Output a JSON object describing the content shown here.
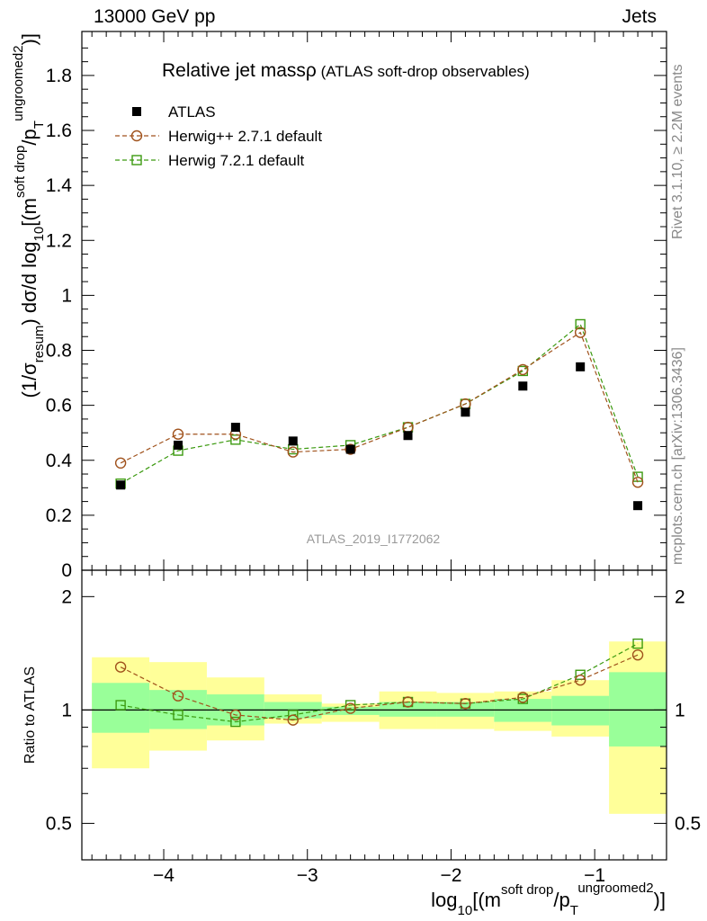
{
  "header": {
    "energy_label": "13000 GeV pp",
    "category_label": "Jets"
  },
  "side_labels": {
    "rivet": "Rivet 3.1.10, ≥ 2.2M events",
    "mcplots": "mcplots.cern.ch [arXiv:1306.3436]"
  },
  "colors": {
    "data": "#000000",
    "herwigpp": "#a0521c",
    "herwig7": "#3c9a10",
    "band_outer": "#ffff99",
    "band_inner": "#99ff99",
    "watermark": "#999999"
  },
  "chart_data": {
    "type": "scatter",
    "title": "Relative jet massρ",
    "subtitle": "(ATLAS soft-drop observables)",
    "analysis_id": "ATLAS_2019_I1772062",
    "xlabel": {
      "pre": "log",
      "sub": "10",
      "mid": "[(m",
      "sup1": "soft drop",
      "mid2": "/p",
      "sub2": "T",
      "sup2": "ungroomed",
      "sup3": "2",
      "post": ")",
      "tail": "]"
    },
    "ylabel": {
      "a": "(1/σ",
      "b": "resum",
      "c": ") dσ/d log",
      "d": "10",
      "e": "[(m",
      "f": "soft drop",
      "g": "/p",
      "h": "T",
      "i": "ungroomed",
      "j": "2",
      "k": ")",
      "l": "]"
    },
    "xlim": [
      -4.57,
      -0.5
    ],
    "ylim_main": [
      0,
      1.96
    ],
    "ylim_ratio": [
      0.4,
      2.35
    ],
    "x_ticks": [
      -4,
      -3,
      -2,
      -1
    ],
    "x_tick_labels": [
      "−4",
      "−3",
      "−2",
      "−1"
    ],
    "y_ticks_main": [
      0,
      0.2,
      0.4,
      0.6,
      0.8,
      1,
      1.2,
      1.4,
      1.6,
      1.8
    ],
    "y_tick_labels_main": [
      "0",
      "0.2",
      "0.4",
      "0.6",
      "0.8",
      "1",
      "1.2",
      "1.4",
      "1.6",
      "1.8"
    ],
    "ratio_ylabel": "Ratio to ATLAS",
    "ratio_ticks": [
      0.5,
      1,
      2
    ],
    "ratio_tick_labels": [
      "0.5",
      "1",
      "2"
    ],
    "ratio_scale": "log",
    "legend_position": "top-left",
    "bins": [
      -4.5,
      -4.1,
      -3.7,
      -3.3,
      -2.9,
      -2.5,
      -2.1,
      -1.7,
      -1.3,
      -0.9,
      -0.5
    ],
    "x": [
      -4.3,
      -3.9,
      -3.5,
      -3.1,
      -2.7,
      -2.3,
      -1.9,
      -1.5,
      -1.1,
      -0.7
    ],
    "series": [
      {
        "name": "ATLAS",
        "marker": "filled-square",
        "values": [
          0.31,
          0.455,
          0.52,
          0.47,
          0.44,
          0.49,
          0.575,
          0.67,
          0.74,
          0.235
        ]
      },
      {
        "name": "Herwig++ 2.7.1 default",
        "marker": "open-circle",
        "values": [
          0.39,
          0.495,
          0.495,
          0.43,
          0.44,
          0.52,
          0.605,
          0.73,
          0.865,
          0.32
        ]
      },
      {
        "name": "Herwig 7.2.1 default",
        "marker": "open-square",
        "values": [
          0.315,
          0.435,
          0.475,
          0.44,
          0.455,
          0.52,
          0.605,
          0.725,
          0.895,
          0.34
        ]
      }
    ],
    "ratio_series": [
      {
        "name": "Herwig++ 2.7.1 default",
        "values": [
          1.3,
          1.09,
          0.97,
          0.94,
          1.01,
          1.05,
          1.04,
          1.08,
          1.2,
          1.4
        ]
      },
      {
        "name": "Herwig 7.2.1 default",
        "values": [
          1.03,
          0.97,
          0.93,
          0.97,
          1.03,
          1.05,
          1.04,
          1.07,
          1.24,
          1.5
        ]
      }
    ],
    "uncertainty_bands": {
      "outer": [
        [
          0.7,
          1.38
        ],
        [
          0.78,
          1.34
        ],
        [
          0.83,
          1.22
        ],
        [
          0.92,
          1.1
        ],
        [
          0.93,
          1.04
        ],
        [
          0.89,
          1.12
        ],
        [
          0.89,
          1.11
        ],
        [
          0.88,
          1.12
        ],
        [
          0.85,
          1.2
        ],
        [
          0.53,
          1.52
        ]
      ],
      "inner": [
        [
          0.87,
          1.18
        ],
        [
          0.89,
          1.13
        ],
        [
          0.91,
          1.1
        ],
        [
          0.95,
          1.05
        ],
        [
          0.97,
          1.02
        ],
        [
          0.96,
          1.05
        ],
        [
          0.96,
          1.05
        ],
        [
          0.93,
          1.07
        ],
        [
          0.91,
          1.09
        ],
        [
          0.8,
          1.26
        ]
      ]
    }
  }
}
